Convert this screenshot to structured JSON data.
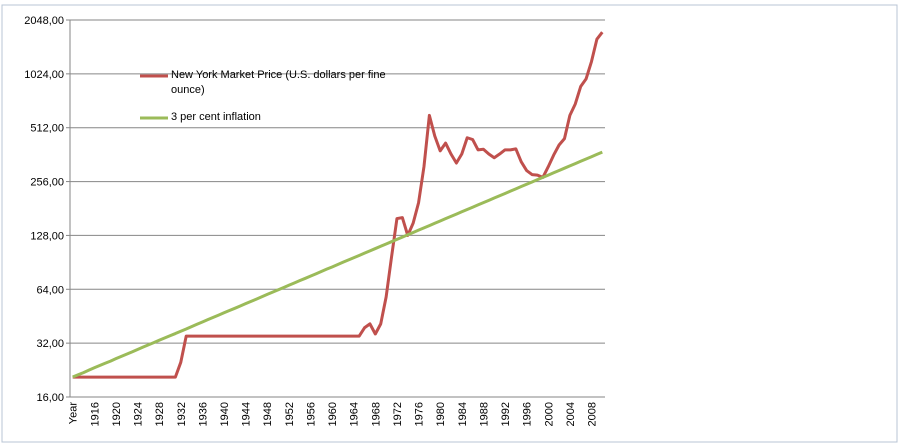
{
  "chart_data": {
    "type": "line",
    "categories": [
      "Year",
      null,
      null,
      null,
      "1916",
      null,
      null,
      null,
      "1920",
      null,
      null,
      null,
      "1924",
      null,
      null,
      null,
      "1928",
      null,
      null,
      null,
      "1932",
      null,
      null,
      null,
      "1936",
      null,
      null,
      null,
      "1940",
      null,
      null,
      null,
      "1944",
      null,
      null,
      null,
      "1948",
      null,
      null,
      null,
      "1952",
      null,
      null,
      null,
      "1956",
      null,
      null,
      null,
      "1960",
      null,
      null,
      null,
      "1964",
      null,
      null,
      null,
      "1968",
      null,
      null,
      null,
      "1972",
      null,
      null,
      null,
      "1976",
      null,
      null,
      null,
      "1980",
      null,
      null,
      null,
      "1984",
      null,
      null,
      null,
      "1988",
      null,
      null,
      null,
      "1992",
      null,
      null,
      null,
      "1996",
      null,
      null,
      null,
      "2000",
      null,
      null,
      null,
      "2004",
      null,
      null,
      null,
      "2008",
      null,
      null
    ],
    "series": [
      {
        "name": "New York Market Price (U.S. dollars per fine ounce)",
        "color": "#c0504d",
        "values": [
          20.67,
          20.67,
          20.67,
          20.67,
          20.67,
          20.67,
          20.67,
          20.67,
          20.67,
          20.67,
          20.67,
          20.67,
          20.67,
          20.67,
          20.67,
          20.67,
          20.67,
          20.67,
          20.67,
          20.67,
          25,
          35,
          35,
          35,
          35,
          35,
          35,
          35,
          35,
          35,
          35,
          35,
          35,
          35,
          35,
          35,
          35,
          35,
          35,
          35,
          35,
          35,
          35,
          35,
          35,
          35,
          35,
          35,
          35,
          35,
          35,
          35,
          35,
          35,
          39,
          41,
          36,
          41,
          58,
          97,
          159,
          161,
          128,
          150,
          195,
          310,
          600,
          460,
          380,
          420,
          365,
          325,
          365,
          450,
          440,
          385,
          388,
          365,
          348,
          365,
          385,
          385,
          390,
          330,
          295,
          280,
          278,
          270,
          310,
          360,
          410,
          445,
          600,
          695,
          870,
          960,
          1200,
          1600,
          1750
        ]
      },
      {
        "name": "3 per cent inflation",
        "color": "#9bbb59",
        "values": [
          20.7,
          21.3,
          21.9,
          22.6,
          23.3,
          24.0,
          24.7,
          25.4,
          26.2,
          27.0,
          27.8,
          28.6,
          29.5,
          30.4,
          31.3,
          32.2,
          33.2,
          34.2,
          35.2,
          36.2,
          37.3,
          38.4,
          39.6,
          40.8,
          42.0,
          43.3,
          44.6,
          45.9,
          47.3,
          48.7,
          50.1,
          51.6,
          53.2,
          54.8,
          56.4,
          58.1,
          59.9,
          61.7,
          63.5,
          65.4,
          67.4,
          69.4,
          71.5,
          73.6,
          75.8,
          78.1,
          80.5,
          82.9,
          85.3,
          87.9,
          90.6,
          93.3,
          96.1,
          98.9,
          101.9,
          105.0,
          108.1,
          111.4,
          114.7,
          118.1,
          121.7,
          125.3,
          129.1,
          133.0,
          137.0,
          141.1,
          145.3,
          149.7,
          154.1,
          158.8,
          163.5,
          168.4,
          173.5,
          178.7,
          184.0,
          189.6,
          195.2,
          201.1,
          207.1,
          213.3,
          219.7,
          226.3,
          233.1,
          240.1,
          247.3,
          254.7,
          262.4,
          270.2,
          278.3,
          286.7,
          295.3,
          304.1,
          313.3,
          322.7,
          332.3,
          342.3,
          352.6,
          363.1,
          374.0
        ]
      }
    ],
    "ylim": [
      16,
      2048
    ],
    "yticks": [
      {
        "value": 16,
        "label": "16,00"
      },
      {
        "value": 32,
        "label": "32,00"
      },
      {
        "value": 64,
        "label": "64,00"
      },
      {
        "value": 128,
        "label": "128,00"
      },
      {
        "value": 256,
        "label": "256,00"
      },
      {
        "value": 512,
        "label": "512,00"
      },
      {
        "value": 1024,
        "label": "1024,00"
      },
      {
        "value": 2048,
        "label": "2048,00"
      }
    ],
    "log_scale": true,
    "grid": true,
    "legend": "top-left"
  }
}
